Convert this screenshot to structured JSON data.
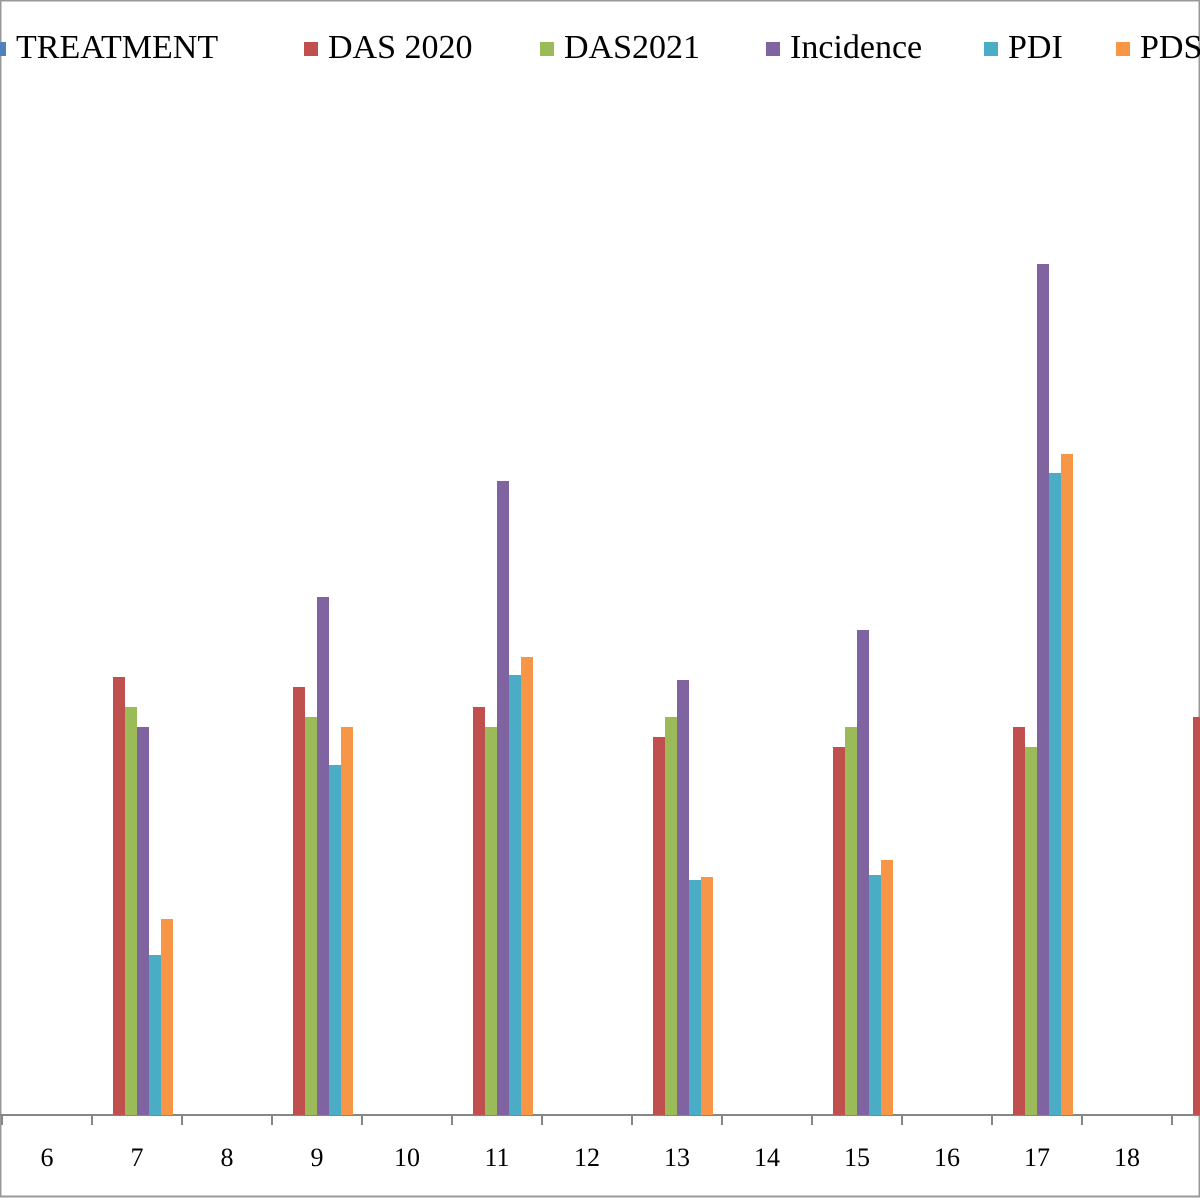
{
  "chart_data": {
    "type": "bar",
    "categories": [
      "6",
      "7",
      "8",
      "9",
      "10",
      "11",
      "12",
      "13",
      "14",
      "15",
      "16",
      "17",
      "18",
      null
    ],
    "series": [
      {
        "name": "TREATMENT",
        "color": "#4f81bd",
        "values": [
          null,
          null,
          null,
          null,
          null,
          null,
          null,
          null,
          null,
          null,
          null,
          null,
          null,
          null
        ]
      },
      {
        "name": "DAS 2020",
        "color": "#c0504d",
        "values": [
          null,
          43.8,
          null,
          42.8,
          null,
          40.8,
          null,
          37.8,
          null,
          36.8,
          null,
          38.8,
          null,
          39.8
        ]
      },
      {
        "name": "DAS2021",
        "color": "#9bbb59",
        "values": [
          null,
          40.8,
          null,
          39.8,
          null,
          38.8,
          null,
          39.8,
          null,
          38.8,
          null,
          36.8,
          null,
          null
        ]
      },
      {
        "name": "Incidence",
        "color": "#8064a2",
        "values": [
          null,
          38.8,
          null,
          51.8,
          null,
          63.4,
          null,
          43.5,
          null,
          48.5,
          null,
          85.1,
          null,
          null
        ]
      },
      {
        "name": "PDI",
        "color": "#4bacc6",
        "values": [
          null,
          16,
          null,
          35,
          null,
          44,
          null,
          23.5,
          null,
          24,
          null,
          64.2,
          null,
          null
        ]
      },
      {
        "name": "PDS",
        "color": "#f79646",
        "values": [
          null,
          19.6,
          null,
          38.8,
          null,
          45.8,
          null,
          23.8,
          null,
          25.5,
          null,
          66.1,
          null,
          null
        ]
      }
    ],
    "ylim": [
      0,
      90
    ]
  }
}
